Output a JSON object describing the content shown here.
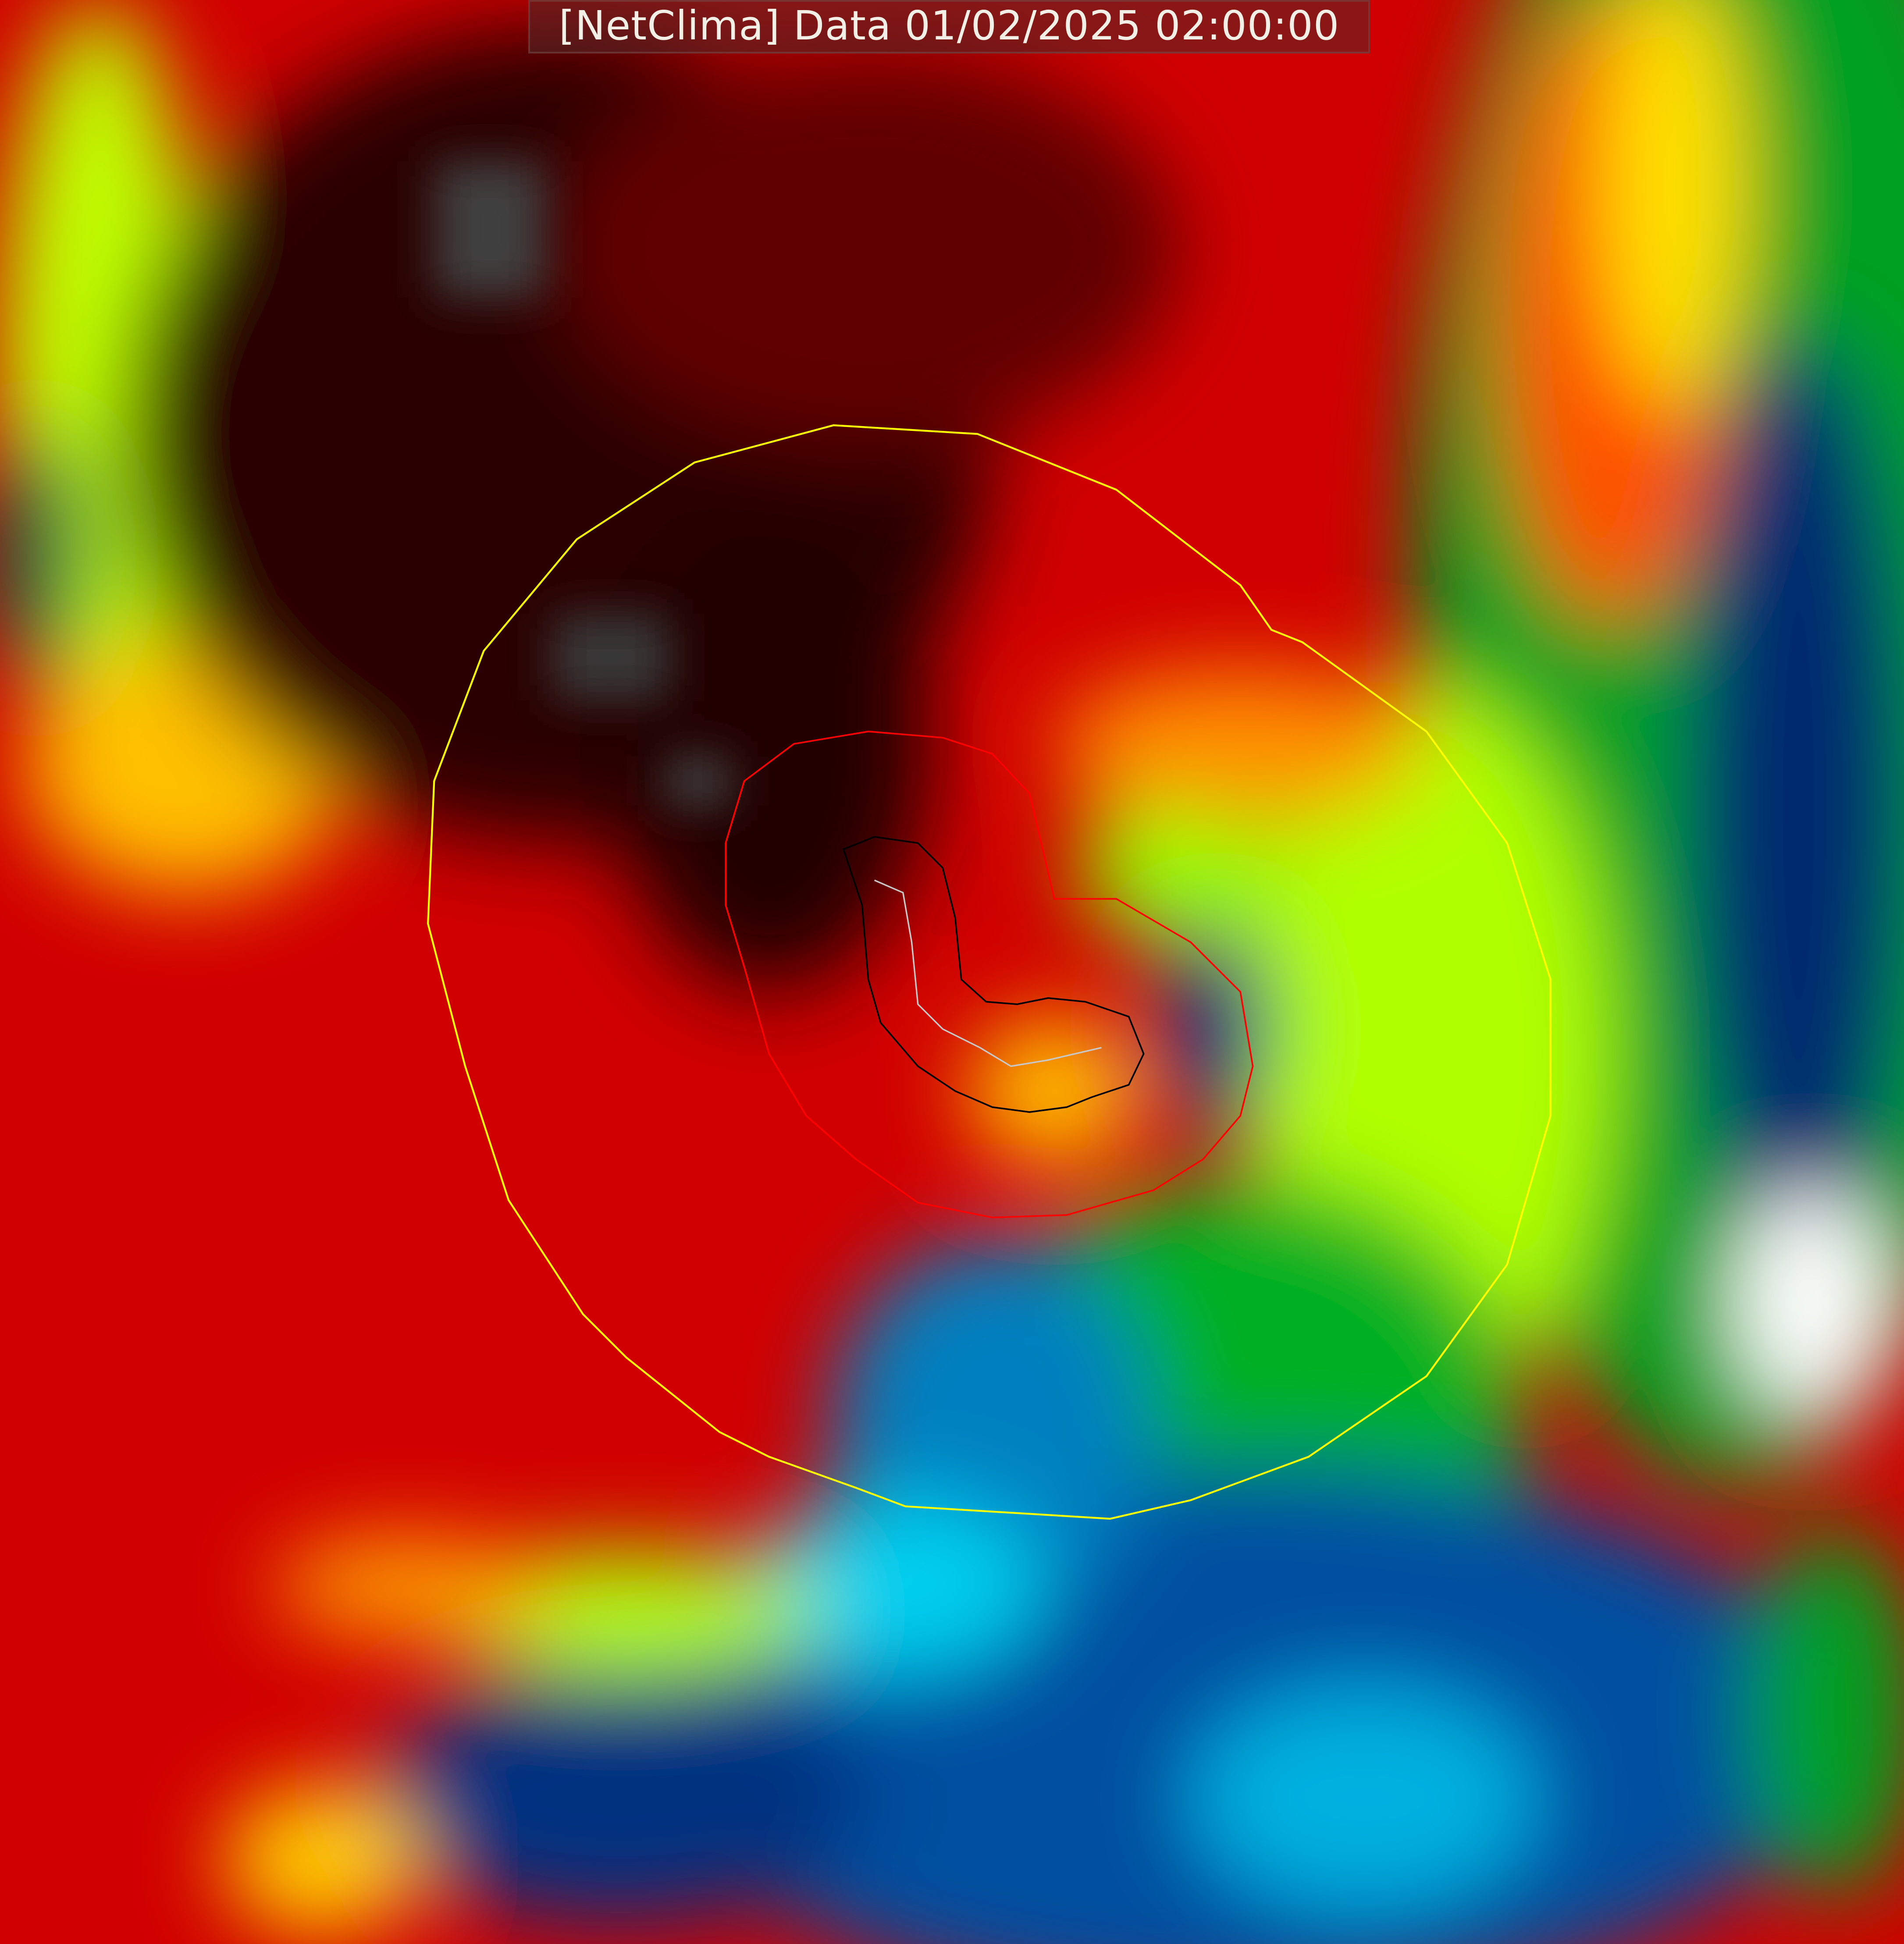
{
  "title": "[NetClima] Data 01/02/2025 02:00:00",
  "map": {
    "type": "satellite-temperature-field",
    "palette": [
      "#1a0000",
      "#5a0000",
      "#a00000",
      "#e00000",
      "#ff3000",
      "#ff9000",
      "#ffe000",
      "#c0ff00",
      "#00ff00",
      "#00a020",
      "#006040",
      "#001870",
      "#0060b0",
      "#00b0e0",
      "#00ffff",
      "#ffffff",
      "#404040"
    ],
    "contours": [
      {
        "name": "outer",
        "color": "#ffff00"
      },
      {
        "name": "middle",
        "color": "#ff0000"
      },
      {
        "name": "inner",
        "color": "#000000"
      },
      {
        "name": "track",
        "color": "#c0c0c0"
      }
    ]
  }
}
